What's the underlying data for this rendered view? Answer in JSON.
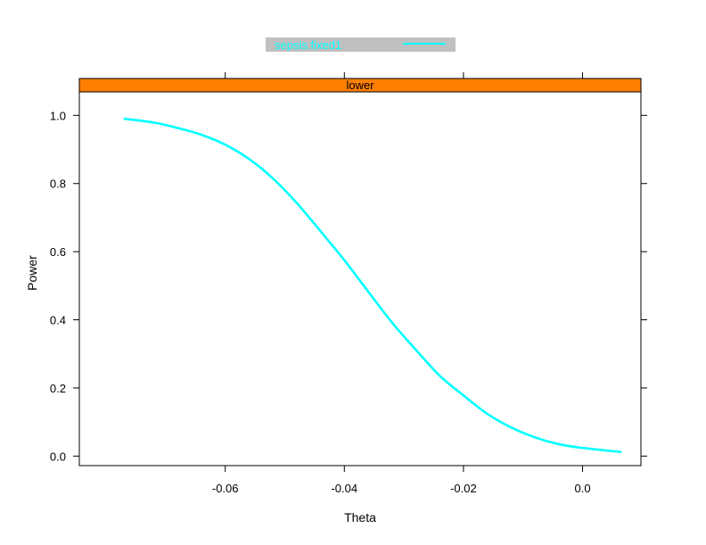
{
  "chart_data": {
    "type": "line",
    "panel": "lower",
    "xlabel": "Theta",
    "ylabel": "Power",
    "xlim": [
      -0.0845,
      0.0098
    ],
    "ylim": [
      -0.028,
      1.069
    ],
    "x_ticks": [
      -0.06,
      -0.04,
      -0.02,
      0.0
    ],
    "x_tick_labels": [
      "-0.06",
      "-0.04",
      "-0.02",
      "0.0"
    ],
    "y_ticks": [
      0.0,
      0.2,
      0.4,
      0.6,
      0.8,
      1.0
    ],
    "y_tick_labels": [
      "0.0",
      "0.2",
      "0.4",
      "0.6",
      "0.8",
      "1.0"
    ],
    "legend_position": "top",
    "grid": false,
    "series": [
      {
        "name": "sepsis.fixed1",
        "color": "#00ffff",
        "x": [
          -0.0769,
          -0.072,
          -0.068,
          -0.064,
          -0.06,
          -0.056,
          -0.052,
          -0.048,
          -0.044,
          -0.04,
          -0.036,
          -0.032,
          -0.028,
          -0.024,
          -0.02,
          -0.016,
          -0.012,
          -0.008,
          -0.004,
          0.0,
          0.0064
        ],
        "y": [
          0.99,
          0.979,
          0.963,
          0.943,
          0.914,
          0.872,
          0.815,
          0.743,
          0.66,
          0.575,
          0.483,
          0.392,
          0.312,
          0.236,
          0.178,
          0.124,
          0.084,
          0.055,
          0.035,
          0.024,
          0.012
        ]
      }
    ]
  },
  "colors": {
    "strip_background": "#ff7f00",
    "legend_background": "#c0c0c0",
    "series_line": "#00ffff",
    "frame": "#000000"
  }
}
